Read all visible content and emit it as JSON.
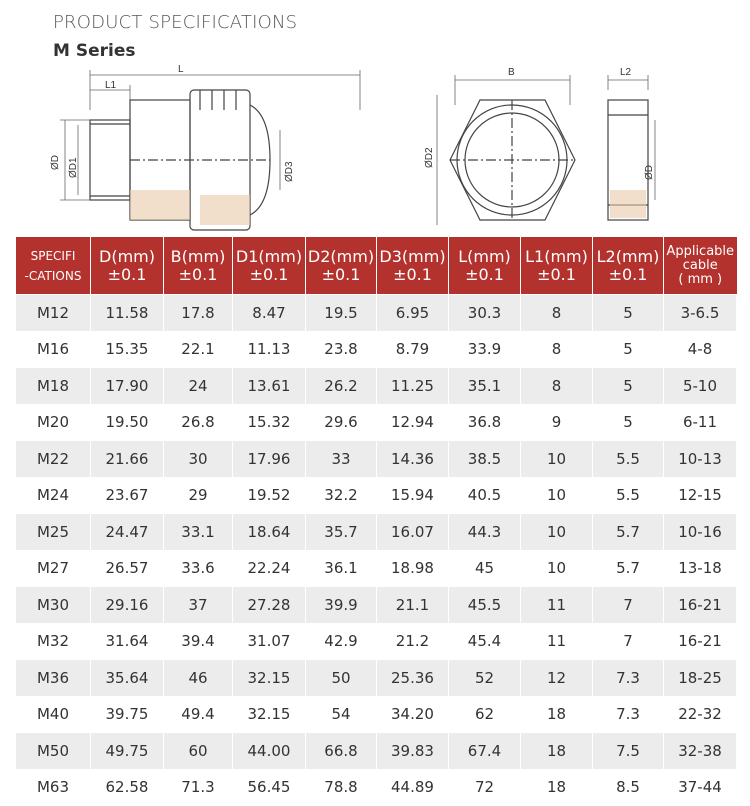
{
  "header": {
    "title": "PRODUCT SPECIFICATIONS",
    "subtitle": "M Series"
  },
  "diagram": {
    "labels": [
      "L",
      "L1",
      "ØD",
      "ØD1",
      "ØD3",
      "B",
      "ØD2",
      "L2",
      "ØD"
    ]
  },
  "table": {
    "headers": [
      [
        "SPECIFI",
        "-CATIONS"
      ],
      [
        "D(mm)",
        "±0.1"
      ],
      [
        "B(mm)",
        "±0.1"
      ],
      [
        "D1(mm)",
        "±0.1"
      ],
      [
        "D2(mm)",
        "±0.1"
      ],
      [
        "D3(mm)",
        "±0.1"
      ],
      [
        "L(mm)",
        "±0.1"
      ],
      [
        "L1(mm)",
        "±0.1"
      ],
      [
        "L2(mm)",
        "±0.1"
      ],
      [
        "Applicable",
        "cable",
        "( mm )"
      ]
    ],
    "rows": [
      [
        "M12",
        "11.58",
        "17.8",
        "8.47",
        "19.5",
        "6.95",
        "30.3",
        "8",
        "5",
        "3-6.5"
      ],
      [
        "M16",
        "15.35",
        "22.1",
        "11.13",
        "23.8",
        "8.79",
        "33.9",
        "8",
        "5",
        "4-8"
      ],
      [
        "M18",
        "17.90",
        "24",
        "13.61",
        "26.2",
        "11.25",
        "35.1",
        "8",
        "5",
        "5-10"
      ],
      [
        "M20",
        "19.50",
        "26.8",
        "15.32",
        "29.6",
        "12.94",
        "36.8",
        "9",
        "5",
        "6-11"
      ],
      [
        "M22",
        "21.66",
        "30",
        "17.96",
        "33",
        "14.36",
        "38.5",
        "10",
        "5.5",
        "10-13"
      ],
      [
        "M24",
        "23.67",
        "29",
        "19.52",
        "32.2",
        "15.94",
        "40.5",
        "10",
        "5.5",
        "12-15"
      ],
      [
        "M25",
        "24.47",
        "33.1",
        "18.64",
        "35.7",
        "16.07",
        "44.3",
        "10",
        "5.7",
        "10-16"
      ],
      [
        "M27",
        "26.57",
        "33.6",
        "22.24",
        "36.1",
        "18.98",
        "45",
        "10",
        "5.7",
        "13-18"
      ],
      [
        "M30",
        "29.16",
        "37",
        "27.28",
        "39.9",
        "21.1",
        "45.5",
        "11",
        "7",
        "16-21"
      ],
      [
        "M32",
        "31.64",
        "39.4",
        "31.07",
        "42.9",
        "21.2",
        "45.4",
        "11",
        "7",
        "16-21"
      ],
      [
        "M36",
        "35.64",
        "46",
        "32.15",
        "50",
        "25.36",
        "52",
        "12",
        "7.3",
        "18-25"
      ],
      [
        "M40",
        "39.75",
        "49.4",
        "32.15",
        "54",
        "34.20",
        "62",
        "18",
        "7.3",
        "22-32"
      ],
      [
        "M50",
        "49.75",
        "60",
        "44.00",
        "66.8",
        "39.83",
        "67.4",
        "18",
        "7.5",
        "32-38"
      ],
      [
        "M63",
        "62.58",
        "71.3",
        "56.45",
        "78.8",
        "44.89",
        "72",
        "18",
        "8.5",
        "37-44"
      ]
    ]
  }
}
